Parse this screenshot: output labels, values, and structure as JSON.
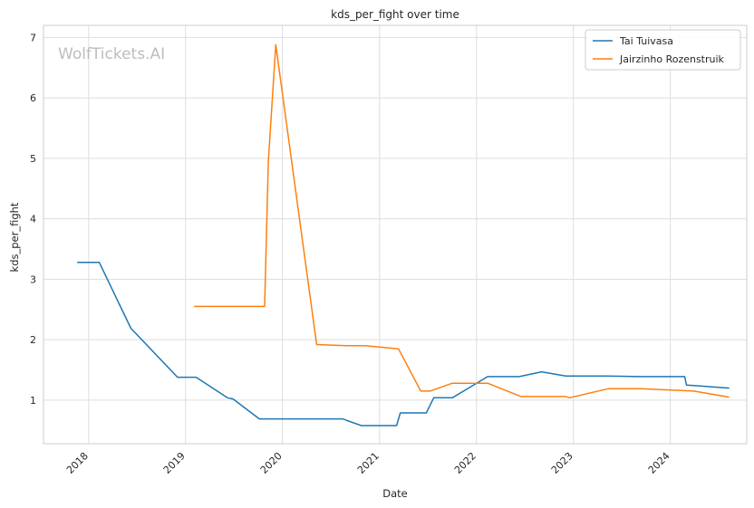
{
  "chart_data": {
    "type": "line",
    "title": "kds_per_fight over time",
    "xlabel": "Date",
    "ylabel": "kds_per_fight",
    "watermark": "WolfTickets.AI",
    "grid": true,
    "legend_position": "top-right",
    "xlim": [
      "2017-07-15",
      "2024-10-15"
    ],
    "ylim": [
      0.28,
      7.2
    ],
    "x_ticks": [
      "2018",
      "2019",
      "2020",
      "2021",
      "2022",
      "2023",
      "2024"
    ],
    "y_ticks": [
      1,
      2,
      3,
      4,
      5,
      6,
      7
    ],
    "series": [
      {
        "name": "Tai Tuivasa",
        "color": "#1f77b4",
        "points": [
          [
            "2017-11-19",
            3.28
          ],
          [
            "2018-02-10",
            3.28
          ],
          [
            "2018-06-09",
            2.19
          ],
          [
            "2018-12-02",
            1.38
          ],
          [
            "2019-02-10",
            1.38
          ],
          [
            "2019-06-08",
            1.04
          ],
          [
            "2019-06-29",
            1.02
          ],
          [
            "2019-10-06",
            0.69
          ],
          [
            "2020-08-15",
            0.69
          ],
          [
            "2020-10-24",
            0.58
          ],
          [
            "2021-03-06",
            0.58
          ],
          [
            "2021-03-20",
            0.79
          ],
          [
            "2021-06-26",
            0.79
          ],
          [
            "2021-07-24",
            1.04
          ],
          [
            "2021-10-02",
            1.04
          ],
          [
            "2022-02-12",
            1.39
          ],
          [
            "2022-06-11",
            1.39
          ],
          [
            "2022-09-03",
            1.47
          ],
          [
            "2022-12-03",
            1.4
          ],
          [
            "2023-05-06",
            1.4
          ],
          [
            "2023-09-09",
            1.39
          ],
          [
            "2024-02-24",
            1.39
          ],
          [
            "2024-03-02",
            1.25
          ],
          [
            "2024-08-10",
            1.2
          ]
        ]
      },
      {
        "name": "Jairzinho Rozenstruik",
        "color": "#ff7f0e",
        "points": [
          [
            "2019-02-02",
            2.55
          ],
          [
            "2019-10-26",
            2.55
          ],
          [
            "2019-11-09",
            4.95
          ],
          [
            "2019-12-07",
            6.88
          ],
          [
            "2020-05-09",
            1.92
          ],
          [
            "2020-08-29",
            1.9
          ],
          [
            "2020-11-07",
            1.9
          ],
          [
            "2021-03-13",
            1.85
          ],
          [
            "2021-06-05",
            1.15
          ],
          [
            "2021-07-10",
            1.15
          ],
          [
            "2021-10-02",
            1.28
          ],
          [
            "2022-02-12",
            1.28
          ],
          [
            "2022-06-18",
            1.06
          ],
          [
            "2022-12-03",
            1.06
          ],
          [
            "2022-12-17",
            1.04
          ],
          [
            "2023-05-13",
            1.19
          ],
          [
            "2023-09-09",
            1.19
          ],
          [
            "2024-03-30",
            1.15
          ],
          [
            "2024-08-10",
            1.05
          ]
        ]
      }
    ]
  }
}
